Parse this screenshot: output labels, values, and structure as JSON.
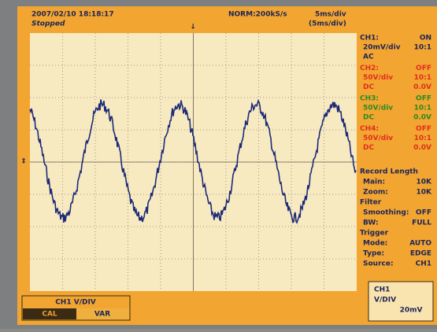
{
  "header": {
    "timestamp": "2007/02/10  18:18:17",
    "status": "Stopped",
    "sample_rate": "NORM:200kS/s",
    "timebase": "5ms/div",
    "timebase_zoom": "(5ms/div)"
  },
  "channels": [
    {
      "name": "CH1:",
      "state": "ON",
      "scale": "20mV/div",
      "probe": "10:1",
      "coupling": "AC"
    },
    {
      "name": "CH2:",
      "state": "OFF",
      "scale": "50V/div",
      "probe": "10:1",
      "coupling": "DC",
      "offset": "0.0V"
    },
    {
      "name": "CH3:",
      "state": "OFF",
      "scale": "50V/div",
      "probe": "10:1",
      "coupling": "DC",
      "offset": "0.0V"
    },
    {
      "name": "CH4:",
      "state": "OFF",
      "scale": "50V/div",
      "probe": "10:1",
      "coupling": "DC",
      "offset": "0.0V"
    }
  ],
  "sections": [
    {
      "title": "Record Length",
      "rows": [
        [
          "Main:",
          "10K"
        ],
        [
          "Zoom:",
          "10K"
        ]
      ]
    },
    {
      "title": "Filter",
      "rows": [
        [
          "Smoothing:",
          "OFF"
        ],
        [
          "BW:",
          "FULL"
        ]
      ]
    },
    {
      "title": "Trigger",
      "rows": [
        [
          "Mode:",
          "AUTO"
        ],
        [
          "Type:",
          "EDGE"
        ],
        [
          "Source:",
          "CH1"
        ]
      ]
    }
  ],
  "softkey": {
    "title": "CH1 V/DIV",
    "options": [
      "CAL",
      "VAR"
    ]
  },
  "readout": [
    "CH1",
    "V/DIV",
    "20mV"
  ]
}
